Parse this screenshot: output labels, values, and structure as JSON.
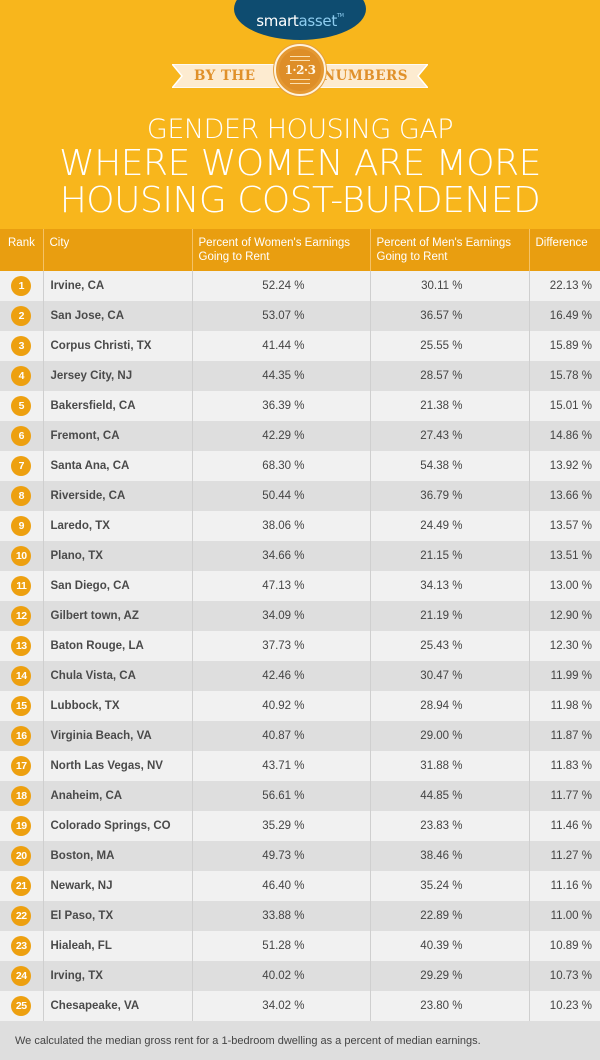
{
  "brand": {
    "logo_part1": "smart",
    "logo_part2": "asset",
    "logo_tm": "TM",
    "logo_bg_color": "#0e4c70"
  },
  "ribbon": {
    "left_text": "BY THE",
    "medal_text": "1·2·3",
    "right_text": "NUMBERS"
  },
  "title": {
    "line1": "GENDER HOUSING GAP",
    "line2": "WHERE WOMEN ARE MORE",
    "line3": "HOUSING COST-BURDENED"
  },
  "colors": {
    "background": "#f8b61c",
    "header": "#e99e10",
    "badge": "#eda010",
    "row_odd": "#f1f1f1",
    "row_even": "#dedede"
  },
  "table": {
    "headers": {
      "rank": "Rank",
      "city": "City",
      "women_line1": "Percent of Women's Earnings",
      "women_line2": "Going to Rent",
      "men_line1": "Percent of Men's Earnings",
      "men_line2": "Going to Rent",
      "difference": "Difference"
    },
    "rows": [
      {
        "rank": "1",
        "city": "Irvine, CA",
        "women": "52.24 %",
        "men": "30.11 %",
        "diff": "22.13 %"
      },
      {
        "rank": "2",
        "city": "San Jose, CA",
        "women": "53.07 %",
        "men": "36.57 %",
        "diff": "16.49 %"
      },
      {
        "rank": "3",
        "city": "Corpus Christi, TX",
        "women": "41.44 %",
        "men": "25.55 %",
        "diff": "15.89 %"
      },
      {
        "rank": "4",
        "city": "Jersey City, NJ",
        "women": "44.35 %",
        "men": "28.57 %",
        "diff": "15.78 %"
      },
      {
        "rank": "5",
        "city": "Bakersfield, CA",
        "women": "36.39 %",
        "men": "21.38 %",
        "diff": "15.01 %"
      },
      {
        "rank": "6",
        "city": "Fremont, CA",
        "women": "42.29 %",
        "men": "27.43 %",
        "diff": "14.86 %"
      },
      {
        "rank": "7",
        "city": "Santa Ana, CA",
        "women": "68.30 %",
        "men": "54.38 %",
        "diff": "13.92 %"
      },
      {
        "rank": "8",
        "city": "Riverside, CA",
        "women": "50.44 %",
        "men": "36.79 %",
        "diff": "13.66 %"
      },
      {
        "rank": "9",
        "city": "Laredo, TX",
        "women": "38.06 %",
        "men": "24.49 %",
        "diff": "13.57 %"
      },
      {
        "rank": "10",
        "city": "Plano, TX",
        "women": "34.66 %",
        "men": "21.15 %",
        "diff": "13.51 %"
      },
      {
        "rank": "11",
        "city": "San Diego, CA",
        "women": "47.13 %",
        "men": "34.13 %",
        "diff": "13.00 %"
      },
      {
        "rank": "12",
        "city": "Gilbert town, AZ",
        "women": "34.09 %",
        "men": "21.19 %",
        "diff": "12.90 %"
      },
      {
        "rank": "13",
        "city": "Baton Rouge, LA",
        "women": "37.73 %",
        "men": "25.43 %",
        "diff": "12.30 %"
      },
      {
        "rank": "14",
        "city": "Chula Vista, CA",
        "women": "42.46 %",
        "men": "30.47 %",
        "diff": "11.99 %"
      },
      {
        "rank": "15",
        "city": "Lubbock, TX",
        "women": "40.92 %",
        "men": "28.94 %",
        "diff": "11.98 %"
      },
      {
        "rank": "16",
        "city": "Virginia Beach, VA",
        "women": "40.87 %",
        "men": "29.00 %",
        "diff": "11.87 %"
      },
      {
        "rank": "17",
        "city": "North Las Vegas, NV",
        "women": "43.71 %",
        "men": "31.88 %",
        "diff": "11.83 %"
      },
      {
        "rank": "18",
        "city": "Anaheim, CA",
        "women": "56.61 %",
        "men": "44.85 %",
        "diff": "11.77 %"
      },
      {
        "rank": "19",
        "city": "Colorado Springs, CO",
        "women": "35.29 %",
        "men": "23.83 %",
        "diff": "11.46 %"
      },
      {
        "rank": "20",
        "city": "Boston, MA",
        "women": "49.73 %",
        "men": "38.46 %",
        "diff": "11.27 %"
      },
      {
        "rank": "21",
        "city": "Newark, NJ",
        "women": "46.40 %",
        "men": "35.24 %",
        "diff": "11.16 %"
      },
      {
        "rank": "22",
        "city": "El Paso, TX",
        "women": "33.88 %",
        "men": "22.89 %",
        "diff": "11.00 %"
      },
      {
        "rank": "23",
        "city": "Hialeah, FL",
        "women": "51.28 %",
        "men": "40.39 %",
        "diff": "10.89 %"
      },
      {
        "rank": "24",
        "city": "Irving, TX",
        "women": "40.02 %",
        "men": "29.29 %",
        "diff": "10.73 %"
      },
      {
        "rank": "25",
        "city": "Chesapeake, VA",
        "women": "34.02 %",
        "men": "23.80 %",
        "diff": "10.23 %"
      }
    ]
  },
  "footer": {
    "note": "We calculated the median gross rent for a 1-bedroom dwelling as a percent of median earnings."
  }
}
